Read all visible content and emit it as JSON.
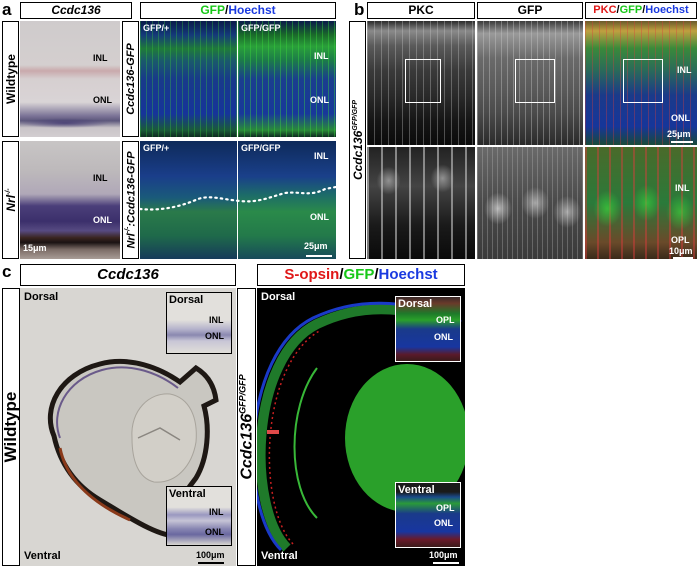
{
  "panel_a": {
    "letter": "a",
    "ish_title": "Ccdc136",
    "fluor_title": {
      "gfp": "GFP",
      "sep": "/",
      "hoechst": "Hoechst"
    },
    "row_wildtype": "Wildtype",
    "row_nrl": "Nrl",
    "row_nrl_sup": "-/-",
    "row_gfp_line": "Ccdc136-GFP",
    "row_nrl_gfp_prefix": "Nrl",
    "row_nrl_gfp_sup": "-/-",
    "row_nrl_gfp_suffix": ":Ccdc136-GFP",
    "geno_het": "GFP/+",
    "geno_hom": "GFP/GFP",
    "inl": "INL",
    "onl": "ONL",
    "scale_ish": "15μm",
    "scale_fluor": "25μm"
  },
  "panel_b": {
    "letter": "b",
    "col_pkc": "PKC",
    "col_gfp": "GFP",
    "merge_pkc": "PKC",
    "merge_gfp": "GFP",
    "merge_hoechst": "Hoechst",
    "sep": "/",
    "row_label": "Ccdc136",
    "row_sup": "GFP/GFP",
    "inl": "INL",
    "onl": "ONL",
    "opl": "OPL",
    "scale_top": "25μm",
    "scale_bottom": "10μm"
  },
  "panel_c": {
    "letter": "c",
    "ish_title": "Ccdc136",
    "wildtype": "Wildtype",
    "dorsal": "Dorsal",
    "ventral": "Ventral",
    "inl": "INL",
    "onl": "ONL",
    "opl": "OPL",
    "scale": "100μm",
    "fluor_title": {
      "sopsin": "S-opsin",
      "gfp": "GFP",
      "hoechst": "Hoechst",
      "sep": "/"
    },
    "row_label": "Ccdc136",
    "row_sup": "GFP/GFP"
  },
  "colors": {
    "gfp": "#18c818",
    "hoechst": "#1a3ae0",
    "red": "#e01818"
  }
}
